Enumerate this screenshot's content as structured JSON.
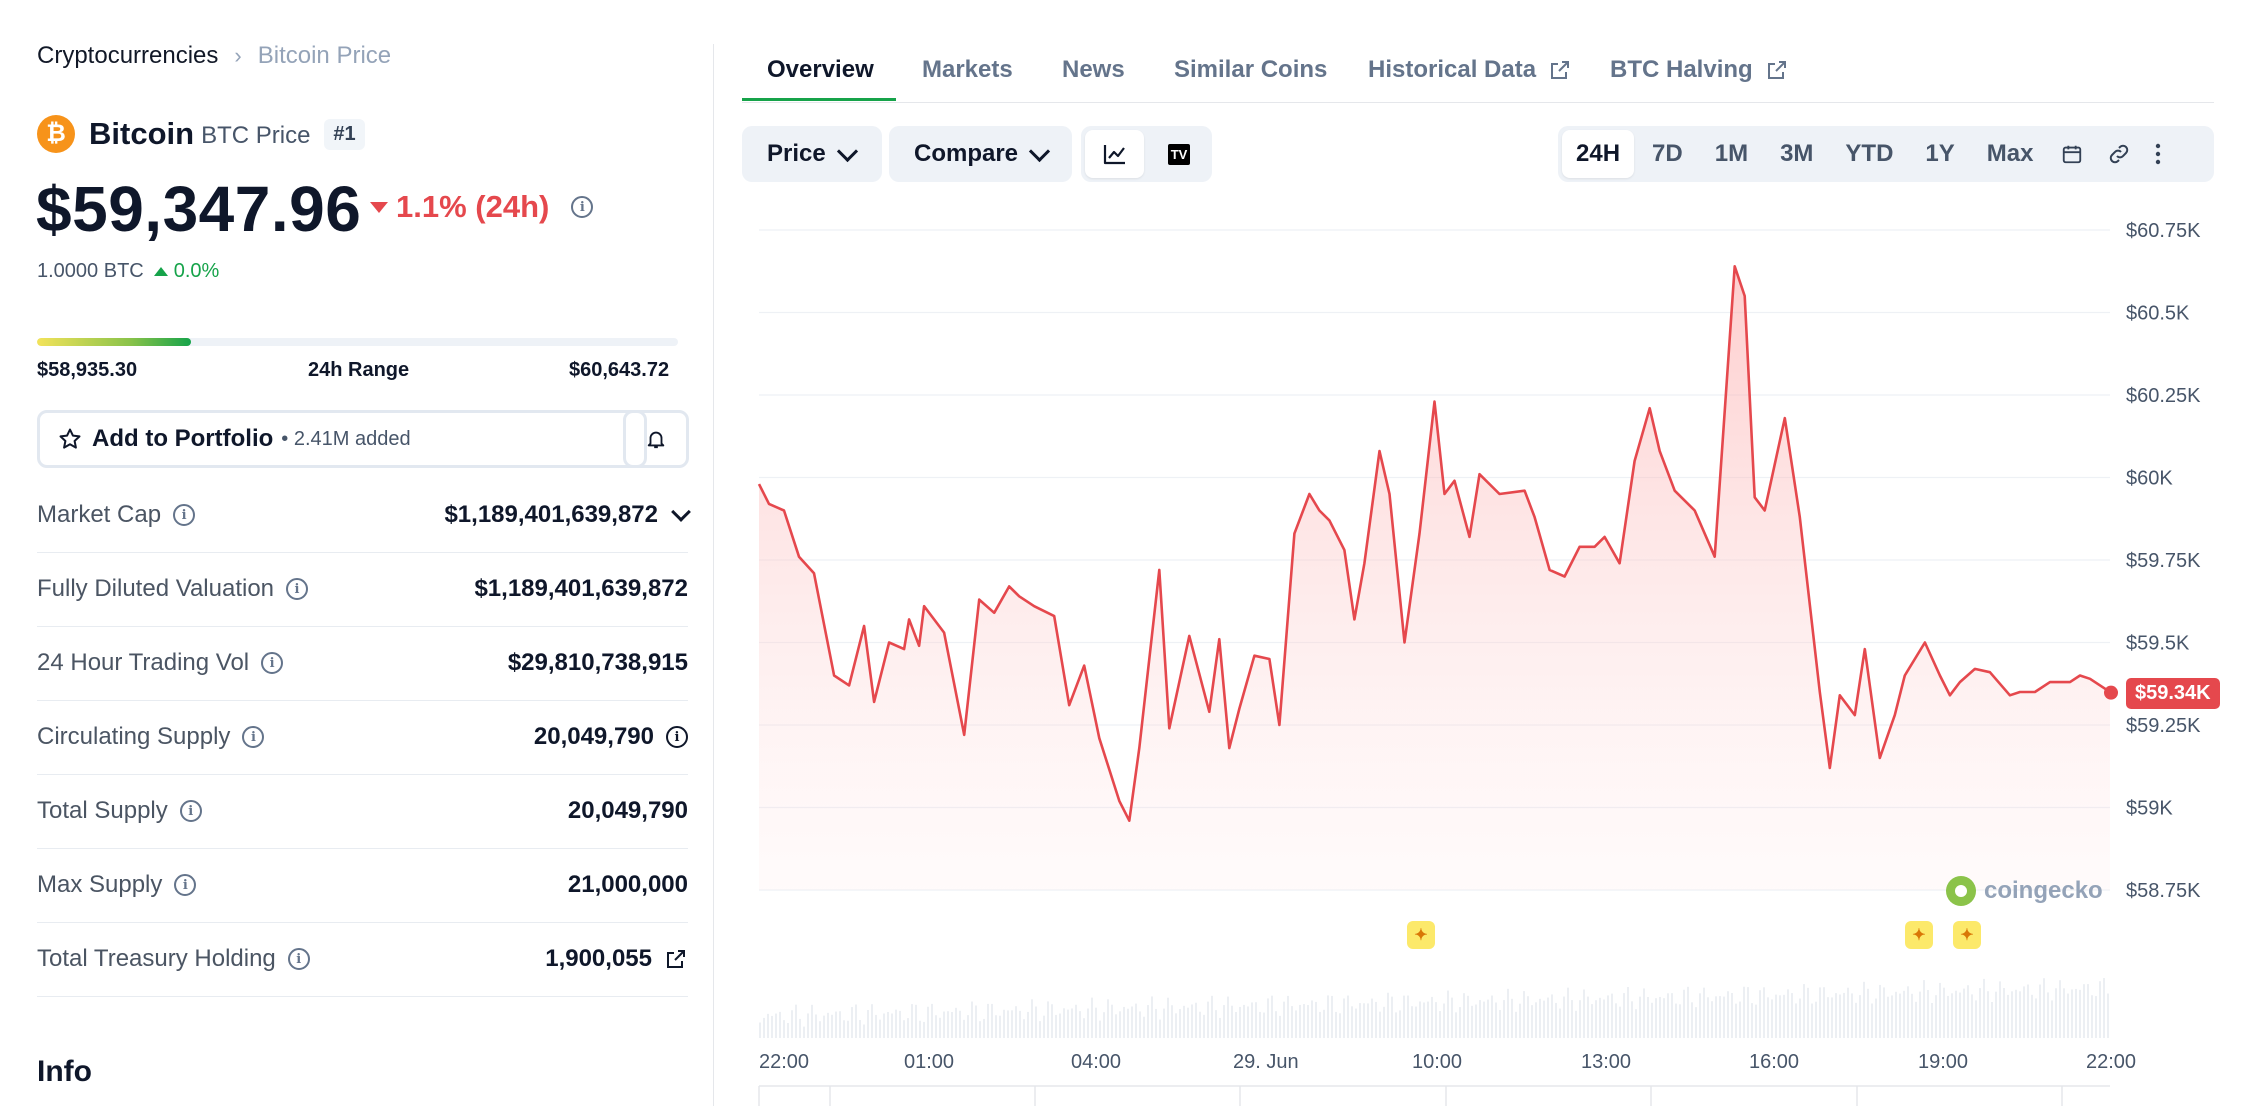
{
  "breadcrumb": {
    "root": "Cryptocurrencies",
    "separator": "›",
    "current": "Bitcoin Price"
  },
  "coin": {
    "logo_glyph": "₿",
    "name": "Bitcoin",
    "symbol_label": "BTC Price",
    "rank": "#1"
  },
  "price": {
    "value": "$59,347.96",
    "change": "1.1% (24h)",
    "btc_value": "1.0000 BTC",
    "btc_change": "0.0%"
  },
  "range": {
    "low": "$58,935.30",
    "label": "24h Range",
    "high": "$60,643.72",
    "fill_fraction": 0.24
  },
  "portfolio": {
    "label": "Add to Portfolio",
    "added": "• 2.41M added"
  },
  "stats": [
    {
      "label": "Market Cap",
      "value": "$1,189,401,639,872"
    },
    {
      "label": "Fully Diluted Valuation",
      "value": "$1,189,401,639,872"
    },
    {
      "label": "24 Hour Trading Vol",
      "value": "$29,810,738,915"
    },
    {
      "label": "Circulating Supply",
      "value": "20,049,790"
    },
    {
      "label": "Total Supply",
      "value": "20,049,790"
    },
    {
      "label": "Max Supply",
      "value": "21,000,000"
    },
    {
      "label": "Total Treasury Holding",
      "value": "1,900,055"
    }
  ],
  "info_heading": "Info",
  "tabs": [
    "Overview",
    "Markets",
    "News",
    "Similar Coins",
    "Historical Data",
    "BTC Halving"
  ],
  "controls": {
    "price_label": "Price",
    "compare_label": "Compare",
    "tv_icon": "TV"
  },
  "ranges": [
    "24H",
    "7D",
    "1M",
    "3M",
    "YTD",
    "1Y",
    "Max"
  ],
  "current_price_tag": "$59.34K",
  "watermark": "coingecko",
  "colors": {
    "line": "#e5484d",
    "fill": "#fde2e2",
    "accent": "#16a34a"
  },
  "chart_data": {
    "type": "area",
    "title": "",
    "y_ticks": [
      "$60.75K",
      "$60.5K",
      "$60.25K",
      "$60K",
      "$59.75K",
      "$59.5K",
      "$59.25K",
      "$59K",
      "$58.75K"
    ],
    "x_ticks": [
      "22:00",
      "01:00",
      "04:00",
      "29. Jun",
      "10:00",
      "13:00",
      "16:00",
      "19:00",
      "22:00"
    ],
    "ylim": [
      58750,
      60750
    ],
    "x_hours": [
      0,
      27
    ],
    "grid": true,
    "x": [
      0,
      0.2,
      0.5,
      0.8,
      1.1,
      1.5,
      1.8,
      2.1,
      2.3,
      2.6,
      2.9,
      3.0,
      3.2,
      3.3,
      3.5,
      3.7,
      4.1,
      4.4,
      4.7,
      5.0,
      5.2,
      5.5,
      5.9,
      6.2,
      6.5,
      6.8,
      7.2,
      7.4,
      7.6,
      8.0,
      8.2,
      8.6,
      9.0,
      9.2,
      9.4,
      9.6,
      9.9,
      10.2,
      10.4,
      10.7,
      11.0,
      11.2,
      11.4,
      11.7,
      11.9,
      12.1,
      12.4,
      12.6,
      12.9,
      13.2,
      13.5,
      13.7,
      13.9,
      14.2,
      14.4,
      14.8,
      15.3,
      15.5,
      15.8,
      16.1,
      16.4,
      16.7,
      16.9,
      17.2,
      17.5,
      17.8,
      18.0,
      18.3,
      18.7,
      19.1,
      19.3,
      19.5,
      19.7,
      19.9,
      20.1,
      20.5,
      20.8,
      21.2,
      21.4,
      21.6,
      21.9,
      22.1,
      22.4,
      22.7,
      22.9,
      23.3,
      23.6,
      23.8,
      24.0,
      24.3,
      24.6,
      25.0,
      25.2,
      25.5,
      25.8,
      26.0,
      26.2,
      26.4,
      26.6,
      26.9,
      27.0
    ],
    "y": [
      59980,
      59920,
      59900,
      59760,
      59710,
      59400,
      59370,
      59550,
      59320,
      59500,
      59480,
      59570,
      59490,
      59610,
      59570,
      59530,
      59220,
      59630,
      59590,
      59670,
      59640,
      59610,
      59580,
      59310,
      59430,
      59210,
      59020,
      58960,
      59180,
      59720,
      59240,
      59520,
      59290,
      59510,
      59180,
      59300,
      59460,
      59450,
      59250,
      59830,
      59950,
      59900,
      59870,
      59780,
      59570,
      59740,
      60080,
      59950,
      59500,
      59830,
      60230,
      59950,
      59990,
      59820,
      60010,
      59950,
      59960,
      59880,
      59720,
      59700,
      59790,
      59790,
      59820,
      59740,
      60050,
      60210,
      60080,
      59960,
      59900,
      59760,
      60200,
      60640,
      60550,
      59940,
      59900,
      60180,
      59880,
      59350,
      59120,
      59340,
      59280,
      59480,
      59150,
      59280,
      59400,
      59500,
      59400,
      59340,
      59380,
      59420,
      59410,
      59340,
      59350,
      59350,
      59380,
      59380,
      59380,
      59400,
      59390,
      59360,
      59348
    ]
  }
}
